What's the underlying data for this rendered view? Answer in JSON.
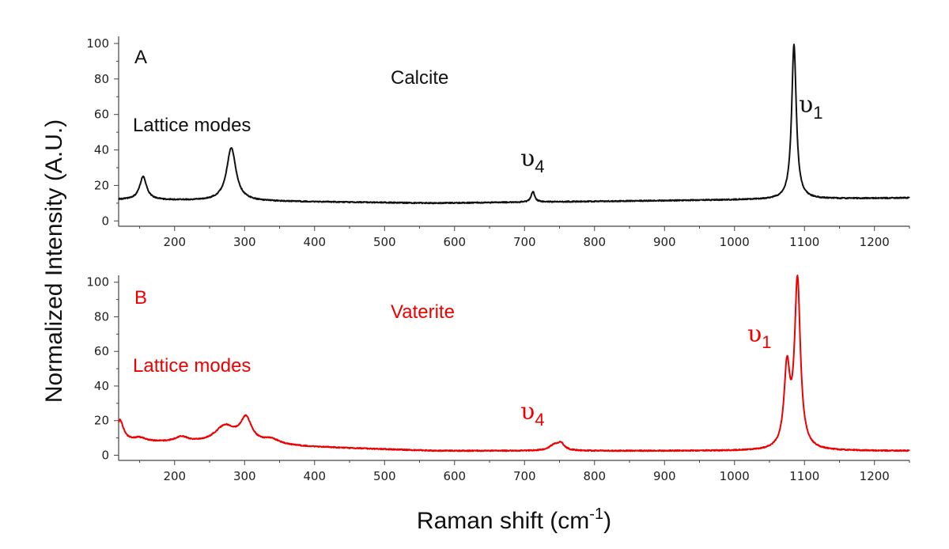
{
  "chart_data": [
    {
      "type": "line",
      "panel_label": "A",
      "title": "Calcite",
      "color": "#111111",
      "xlim": [
        120,
        1250
      ],
      "ylim": [
        -3,
        104
      ],
      "xticks": [
        200,
        300,
        400,
        500,
        600,
        700,
        800,
        900,
        1000,
        1100,
        1200
      ],
      "yticks": [
        0,
        20,
        40,
        60,
        80,
        100
      ],
      "baseline": {
        "start": 12,
        "mid": 10,
        "end": 13
      },
      "peaks": [
        {
          "x": 155,
          "height": 13,
          "width": 6
        },
        {
          "x": 281,
          "height": 30,
          "width": 8
        },
        {
          "x": 712,
          "height": 6,
          "width": 3
        },
        {
          "x": 1085,
          "height": 87,
          "width": 4
        }
      ],
      "annotations": [
        {
          "name": "lattice",
          "text": "Lattice modes"
        },
        {
          "name": "nu4",
          "symbol": "υ",
          "sub": "4"
        },
        {
          "name": "nu1",
          "symbol": "υ",
          "sub": "1"
        }
      ]
    },
    {
      "type": "line",
      "panel_label": "B",
      "title": "Vaterite",
      "color": "#ee0000",
      "xlim": [
        120,
        1250
      ],
      "ylim": [
        -3,
        104
      ],
      "xticks": [
        200,
        300,
        400,
        500,
        600,
        700,
        800,
        900,
        1000,
        1100,
        1200
      ],
      "yticks": [
        0,
        20,
        40,
        60,
        80,
        100
      ],
      "baseline": {
        "start": 8,
        "mid": 2.5,
        "end": 2.5
      },
      "peaks": [
        {
          "x": 122,
          "height": 12,
          "width": 6
        },
        {
          "x": 150,
          "height": 2,
          "width": 10
        },
        {
          "x": 210,
          "height": 3,
          "width": 12
        },
        {
          "x": 272,
          "height": 10,
          "width": 18
        },
        {
          "x": 302,
          "height": 14,
          "width": 10
        },
        {
          "x": 338,
          "height": 3,
          "width": 15
        },
        {
          "x": 742,
          "height": 3,
          "width": 8
        },
        {
          "x": 752,
          "height": 4,
          "width": 6
        },
        {
          "x": 1075,
          "height": 45,
          "width": 5
        },
        {
          "x": 1090,
          "height": 97,
          "width": 5
        }
      ],
      "annotations": [
        {
          "name": "lattice",
          "text": "Lattice modes"
        },
        {
          "name": "nu4",
          "symbol": "υ",
          "sub": "4"
        },
        {
          "name": "nu1",
          "symbol": "υ",
          "sub": "1"
        }
      ]
    }
  ],
  "axes": {
    "ylabel": "Normalized Intensity (A.U.)",
    "xlabel_main": "Raman shift (cm",
    "xlabel_sup": "-1",
    "xlabel_close": ")"
  }
}
